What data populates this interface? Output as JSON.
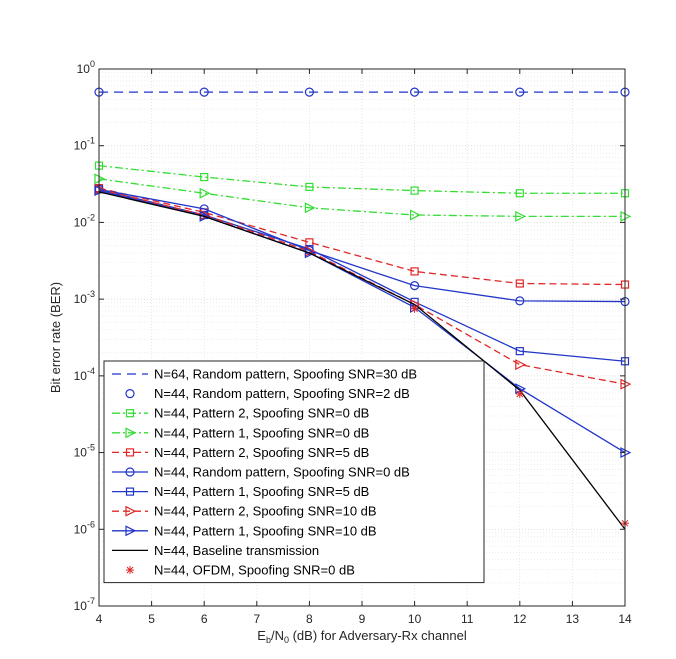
{
  "chart_data": {
    "type": "line",
    "title": "",
    "xlabel": {
      "main": "E",
      "sub1": "b",
      "mid": "/N",
      "sub2": "0",
      "rest": " (dB) for Adversary-Rx channel"
    },
    "ylabel": "Bit error rate (BER)",
    "xlim": [
      4,
      14
    ],
    "ylim": [
      1e-07,
      1
    ],
    "y_scale": "log",
    "grid": "on (major and minor)",
    "legend_position": "bottom-left",
    "x_ticks": [
      "4",
      "5",
      "6",
      "7",
      "8",
      "9",
      "10",
      "11",
      "12",
      "13",
      "14"
    ],
    "y_ticks": [
      {
        "base": "10",
        "exp": "-7"
      },
      {
        "base": "10",
        "exp": "-6"
      },
      {
        "base": "10",
        "exp": "-5"
      },
      {
        "base": "10",
        "exp": "-4"
      },
      {
        "base": "10",
        "exp": "-3"
      },
      {
        "base": "10",
        "exp": "-2"
      },
      {
        "base": "10",
        "exp": "-1"
      },
      {
        "base": "10",
        "exp": "0"
      }
    ],
    "series": [
      {
        "name": "N=64, Random pattern, Spoofing SNR=30 dB",
        "color": "#2236c8",
        "dash": "9,6",
        "marker": "none",
        "x": [
          4,
          14
        ],
        "y": [
          0.5,
          0.5
        ]
      },
      {
        "name": "N=44, Random pattern, Spoofing SNR=2 dB",
        "color": "#2236c8",
        "dash": "none",
        "marker": "circle",
        "line": false,
        "x": [
          4,
          6,
          8,
          10,
          12,
          14
        ],
        "y": [
          0.5,
          0.5,
          0.5,
          0.5,
          0.5,
          0.5
        ]
      },
      {
        "name": "N=44, Pattern 2, Spoofing SNR=0 dB",
        "color": "#33dd33",
        "dash": "8,3,2,3",
        "marker": "square",
        "x": [
          4,
          6,
          8,
          10,
          12,
          14
        ],
        "y": [
          0.055,
          0.039,
          0.029,
          0.026,
          0.024,
          0.024
        ]
      },
      {
        "name": "N=44, Pattern 1, Spoofing SNR=0 dB",
        "color": "#33dd33",
        "dash": "8,3,2,3",
        "marker": "triangle-right",
        "x": [
          4,
          6,
          8,
          10,
          12,
          14
        ],
        "y": [
          0.037,
          0.024,
          0.0155,
          0.0125,
          0.012,
          0.012
        ]
      },
      {
        "name": "N=44, Pattern 2, Spoofing SNR=5 dB",
        "color": "#e02828",
        "dash": "7,4",
        "marker": "square",
        "x": [
          4,
          6,
          8,
          10,
          12,
          14
        ],
        "y": [
          0.028,
          0.0135,
          0.0055,
          0.0023,
          0.0016,
          0.00155
        ]
      },
      {
        "name": "N=44, Random pattern, Spoofing SNR=0 dB",
        "color": "#2236c8",
        "dash": "none",
        "marker": "circle",
        "x": [
          4,
          6,
          8,
          10,
          12,
          14
        ],
        "y": [
          0.027,
          0.015,
          0.0043,
          0.0015,
          0.00095,
          0.00093
        ]
      },
      {
        "name": "N=44, Pattern 1, Spoofing SNR=5 dB",
        "color": "#2236c8",
        "dash": "none",
        "marker": "square",
        "x": [
          4,
          6,
          8,
          10,
          12,
          14
        ],
        "y": [
          0.027,
          0.0125,
          0.0045,
          0.00092,
          0.00021,
          0.000155
        ]
      },
      {
        "name": "N=44, Pattern 2, Spoofing SNR=10 dB",
        "color": "#e02828",
        "dash": "7,4",
        "marker": "triangle-right",
        "x": [
          4,
          6,
          8,
          10,
          12,
          14
        ],
        "y": [
          0.027,
          0.0125,
          0.0042,
          0.00085,
          0.00014,
          7.8e-05
        ]
      },
      {
        "name": "N=44, Pattern 1, Spoofing SNR=10 dB",
        "color": "#2236c8",
        "dash": "none",
        "marker": "triangle-right",
        "x": [
          4,
          6,
          8,
          10,
          12,
          14
        ],
        "y": [
          0.026,
          0.012,
          0.004,
          0.00078,
          6.8e-05,
          1e-05
        ]
      },
      {
        "name": "N=44, Baseline transmission",
        "color": "#000000",
        "dash": "none",
        "marker": "none",
        "x": [
          4,
          6,
          8,
          10,
          12,
          14
        ],
        "y": [
          0.025,
          0.012,
          0.004,
          0.00085,
          6.5e-05,
          1e-06
        ]
      },
      {
        "name": "N=44, OFDM, Spoofing SNR=0 dB",
        "color": "#e02828",
        "dash": "none",
        "marker": "asterisk",
        "line": false,
        "x": [
          10,
          12,
          14
        ],
        "y": [
          0.00075,
          5.8e-05,
          1.2e-06
        ]
      }
    ]
  }
}
